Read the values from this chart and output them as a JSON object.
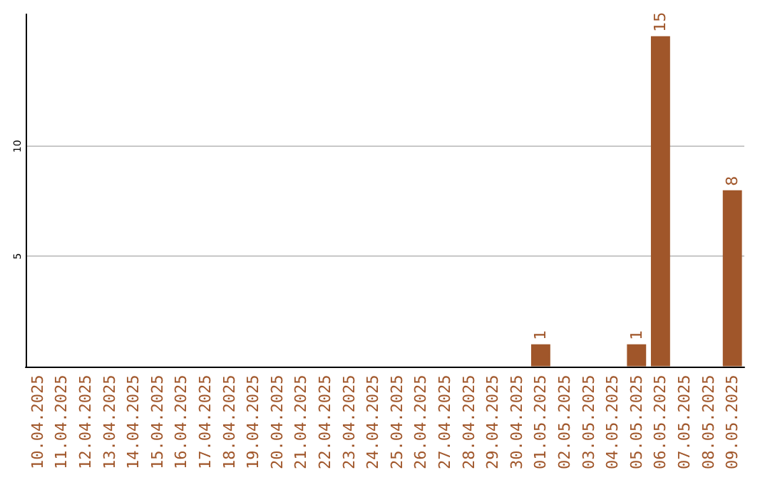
{
  "chart_data": {
    "type": "bar",
    "categories": [
      "10.04.2025",
      "11.04.2025",
      "12.04.2025",
      "13.04.2025",
      "14.04.2025",
      "15.04.2025",
      "16.04.2025",
      "17.04.2025",
      "18.04.2025",
      "19.04.2025",
      "20.04.2025",
      "21.04.2025",
      "22.04.2025",
      "23.04.2025",
      "24.04.2025",
      "25.04.2025",
      "26.04.2025",
      "27.04.2025",
      "28.04.2025",
      "29.04.2025",
      "30.04.2025",
      "01.05.2025",
      "02.05.2025",
      "03.05.2025",
      "04.05.2025",
      "05.05.2025",
      "06.05.2025",
      "07.05.2025",
      "08.05.2025",
      "09.05.2025"
    ],
    "values": [
      0,
      0,
      0,
      0,
      0,
      0,
      0,
      0,
      0,
      0,
      0,
      0,
      0,
      0,
      0,
      0,
      0,
      0,
      0,
      0,
      0,
      1,
      0,
      0,
      0,
      1,
      15,
      0,
      0,
      8
    ],
    "value_labels": [
      null,
      null,
      null,
      null,
      null,
      null,
      null,
      null,
      null,
      null,
      null,
      null,
      null,
      null,
      null,
      null,
      null,
      null,
      null,
      null,
      null,
      "1",
      null,
      null,
      null,
      "1",
      "15",
      null,
      null,
      "8"
    ],
    "color": "#a0562a",
    "ylim": [
      0,
      16
    ],
    "yticks": [
      5,
      10
    ],
    "grid": "y"
  }
}
